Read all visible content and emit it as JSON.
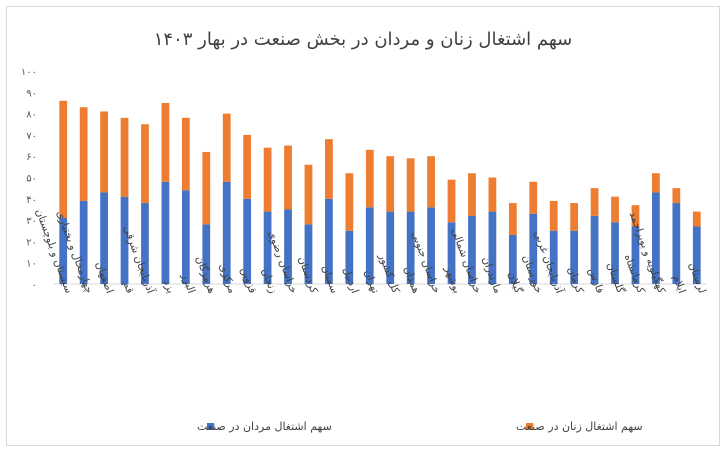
{
  "chart_data": {
    "type": "bar",
    "stacked": true,
    "title": "سهم اشتغال زنان و مردان در بخش صنعت در بهار ۱۴۰۳",
    "xlabel": "",
    "ylabel": "",
    "ylim": [
      0,
      100
    ],
    "y_ticks": [
      "۰",
      "۱۰",
      "۲۰",
      "۳۰",
      "۴۰",
      "۵۰",
      "۶۰",
      "۷۰",
      "۸۰",
      "۹۰",
      "۱۰۰"
    ],
    "grid": false,
    "legend_position": "bottom",
    "categories": [
      "سیستان و بلوچستان",
      "چهارمحال و بختیاری",
      "اصفهان",
      "قم",
      "آذربایجان شرقی",
      "یزد",
      "البرز",
      "هرمزگان",
      "مرکزی",
      "قزوین",
      "زنجان",
      "خراسان رضوی",
      "کردستان",
      "سمنان",
      "اردبیل",
      "تهران",
      "کل کشور",
      "همدان",
      "خراسان جنوبی",
      "بوشهر",
      "خراسان شمالی",
      "مازندران",
      "گیلان",
      "خوزستان",
      "آذربایجان غربی",
      "کرمان",
      "فارس",
      "گلستان",
      "کرمانشاه",
      "کهگیلویه و بویراحمد",
      "ایلام",
      "لرستان"
    ],
    "series": [
      {
        "name": "سهم اشتغال مردان در صنعت",
        "color": "#4472c4",
        "values": [
          31,
          39,
          43,
          41,
          38,
          48,
          44,
          28,
          48,
          40,
          34,
          35,
          28,
          40,
          25,
          36,
          34,
          34,
          36,
          29,
          32,
          34,
          23,
          33,
          25,
          25,
          32,
          29,
          27,
          43,
          38,
          27
        ]
      },
      {
        "name": "سهم اشتغال زنان در صنعت",
        "color": "#ed7d31",
        "values": [
          55,
          44,
          38,
          37,
          37,
          37,
          34,
          34,
          32,
          30,
          30,
          30,
          28,
          28,
          27,
          27,
          26,
          25,
          24,
          20,
          20,
          16,
          15,
          15,
          14,
          13,
          13,
          12,
          10,
          9,
          7,
          7
        ]
      }
    ]
  }
}
